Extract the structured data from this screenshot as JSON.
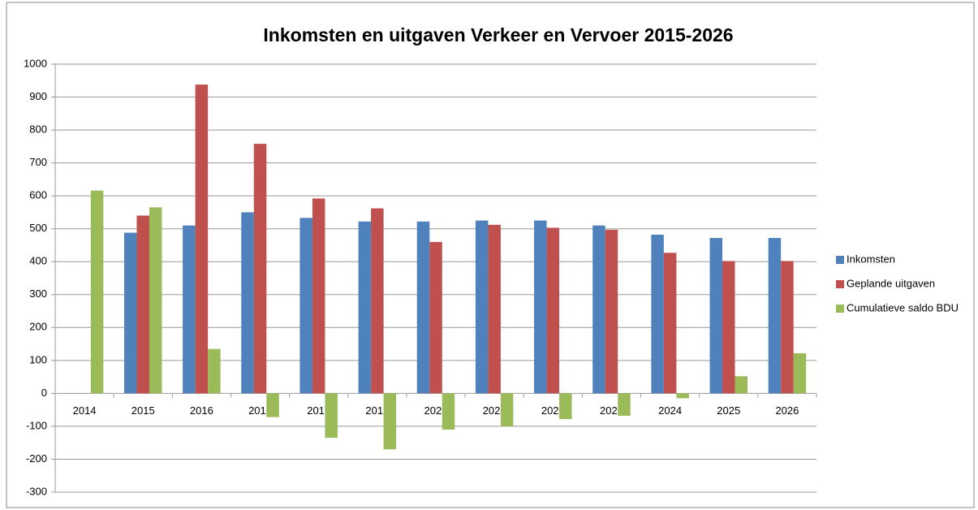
{
  "chart_data": {
    "type": "bar",
    "title": "Inkomsten en uitgaven Verkeer en Vervoer 2015-2026",
    "categories": [
      "2014",
      "2015",
      "2016",
      "2017",
      "2018",
      "2019",
      "2020",
      "2021",
      "2022",
      "2023",
      "2024",
      "2025",
      "2026"
    ],
    "series": [
      {
        "name": "Inkomsten",
        "color": "#4f81bd",
        "values": [
          null,
          488,
          510,
          550,
          533,
          522,
          522,
          525,
          525,
          510,
          482,
          472,
          472
        ]
      },
      {
        "name": "Geplande uitgaven",
        "color": "#c0504d",
        "values": [
          null,
          540,
          938,
          758,
          592,
          562,
          460,
          512,
          503,
          497,
          427,
          402,
          402
        ]
      },
      {
        "name": "Cumulatieve saldo BDU",
        "color": "#9bbb59",
        "values": [
          616,
          565,
          135,
          -72,
          -135,
          -170,
          -110,
          -100,
          -78,
          -68,
          -15,
          52,
          122
        ]
      }
    ],
    "ylim": [
      -300,
      1000
    ],
    "yticks": [
      -300,
      -200,
      -100,
      0,
      100,
      200,
      300,
      400,
      500,
      600,
      700,
      800,
      900,
      1000
    ],
    "grid": true,
    "legend": "right"
  }
}
